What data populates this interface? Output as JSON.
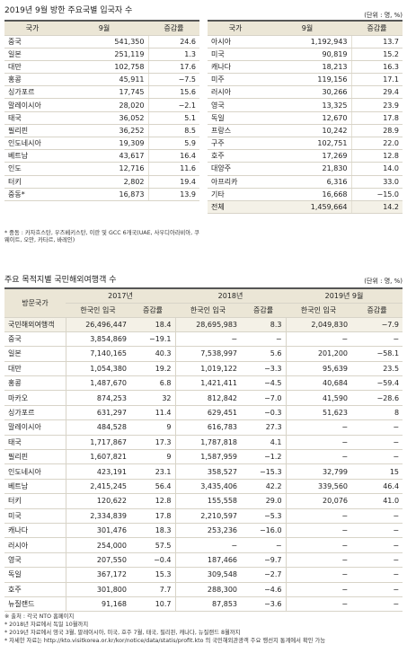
{
  "section1": {
    "title": "2019년 9월 방한 주요국별 입국자 수",
    "unit": "(단위 : 명, %)",
    "left": {
      "header": [
        "국가",
        "9월",
        "증감률"
      ],
      "rows": [
        [
          "중국",
          "541,350",
          "24.6"
        ],
        [
          "일본",
          "251,119",
          "1.3"
        ],
        [
          "대만",
          "102,758",
          "17.6"
        ],
        [
          "홍콩",
          "45,911",
          "−7.5"
        ],
        [
          "싱가포르",
          "17,745",
          "15.6"
        ],
        [
          "말레이시아",
          "28,020",
          "−2.1"
        ],
        [
          "태국",
          "36,052",
          "5.1"
        ],
        [
          "필리핀",
          "36,252",
          "8.5"
        ],
        [
          "인도네시아",
          "19,309",
          "5.9"
        ],
        [
          "베트남",
          "43,617",
          "16.4"
        ],
        [
          "인도",
          "12,716",
          "11.6"
        ],
        [
          "터키",
          "2,802",
          "19.4"
        ],
        [
          "중동*",
          "16,873",
          "13.9"
        ]
      ]
    },
    "right": {
      "header": [
        "국가",
        "9월",
        "증감률"
      ],
      "rows": [
        [
          "아시아",
          "1,192,943",
          "13.7"
        ],
        [
          "미국",
          "90,819",
          "15.2"
        ],
        [
          "캐나다",
          "18,213",
          "16.3"
        ],
        [
          "미주",
          "119,156",
          "17.1"
        ],
        [
          "러시아",
          "30,266",
          "29.4"
        ],
        [
          "영국",
          "13,325",
          "23.9"
        ],
        [
          "독일",
          "12,670",
          "17.8"
        ],
        [
          "프랑스",
          "10,242",
          "28.9"
        ],
        [
          "구주",
          "102,751",
          "22.0"
        ],
        [
          "호주",
          "17,269",
          "12.8"
        ],
        [
          "대양주",
          "21,830",
          "14.0"
        ],
        [
          "아프리카",
          "6,316",
          "33.0"
        ],
        [
          "기타",
          "16,668",
          "−15.0"
        ],
        [
          "전체",
          "1,459,664",
          "14.2"
        ]
      ]
    },
    "footnote": "* 중동 : 카자흐스탄, 우즈베키스탄, 이란 및 GCC 6개국(UAE, 사우디아라비아, 쿠웨이트, 오만, 카타르, 바레인)"
  },
  "section2": {
    "title": "주요 목적지별 국민해외여행객 수",
    "unit": "(단위 : 명, %)",
    "header": {
      "country": "방문국가",
      "years": [
        "2017년",
        "2018년",
        "2019년 9월"
      ],
      "sub": [
        "한국인 입국",
        "증감률",
        "한국인 입국",
        "증감률",
        "한국인 입국",
        "증감률"
      ]
    },
    "rows": [
      [
        "국민해외여행객",
        "26,496,447",
        "18.4",
        "28,695,983",
        "8.3",
        "2,049,830",
        "−7.9"
      ],
      [
        "중국",
        "3,854,869",
        "−19.1",
        "−",
        "−",
        "−",
        "−"
      ],
      [
        "일본",
        "7,140,165",
        "40.3",
        "7,538,997",
        "5.6",
        "201,200",
        "−58.1"
      ],
      [
        "대만",
        "1,054,380",
        "19.2",
        "1,019,122",
        "−3.3",
        "95,639",
        "23.5"
      ],
      [
        "홍콩",
        "1,487,670",
        "6.8",
        "1,421,411",
        "−4.5",
        "40,684",
        "−59.4"
      ],
      [
        "마카오",
        "874,253",
        "32",
        "812,842",
        "−7.0",
        "41,590",
        "−28.6"
      ],
      [
        "싱가포르",
        "631,297",
        "11.4",
        "629,451",
        "−0.3",
        "51,623",
        "8"
      ],
      [
        "말레이시아",
        "484,528",
        "9",
        "616,783",
        "27.3",
        "−",
        "−"
      ],
      [
        "태국",
        "1,717,867",
        "17.3",
        "1,787,818",
        "4.1",
        "−",
        "−"
      ],
      [
        "필리핀",
        "1,607,821",
        "9",
        "1,587,959",
        "−1.2",
        "−",
        "−"
      ],
      [
        "인도네시아",
        "423,191",
        "23.1",
        "358,527",
        "−15.3",
        "32,799",
        "15"
      ],
      [
        "베트남",
        "2,415,245",
        "56.4",
        "3,435,406",
        "42.2",
        "339,560",
        "46.4"
      ],
      [
        "터키",
        "120,622",
        "12.8",
        "155,558",
        "29.0",
        "20,076",
        "41.0"
      ],
      [
        "미국",
        "2,334,839",
        "17.8",
        "2,210,597",
        "−5.3",
        "−",
        "−"
      ],
      [
        "캐나다",
        "301,476",
        "18.3",
        "253,236",
        "−16.0",
        "−",
        "−"
      ],
      [
        "러시아",
        "254,000",
        "57.5",
        "−",
        "−",
        "−",
        "−"
      ],
      [
        "영국",
        "207,550",
        "−0.4",
        "187,466",
        "−9.7",
        "−",
        "−"
      ],
      [
        "독일",
        "367,172",
        "15.3",
        "309,548",
        "−2.7",
        "−",
        "−"
      ],
      [
        "호주",
        "301,800",
        "7.7",
        "288,300",
        "−4.6",
        "−",
        "−"
      ],
      [
        "뉴질랜드",
        "91,168",
        "10.7",
        "87,853",
        "−3.6",
        "−",
        "−"
      ]
    ],
    "footnotes": [
      "※ 출처 : 각국 NTO 홈페이지",
      "* 2018년 자료에서 독일 10월까지",
      "* 2019년 자료에서 영국 3월, 말레이시아, 미국, 호주 7월, 태국, 필리핀, 캐나다, 뉴질랜드 8월까지",
      "* 자세한 자료는 http://kto.visitkorea.or.kr/kor/notice/data/statis/profit.kto 의 국민해외관광객 주요 행선지 통계에서 확인 가능"
    ]
  }
}
